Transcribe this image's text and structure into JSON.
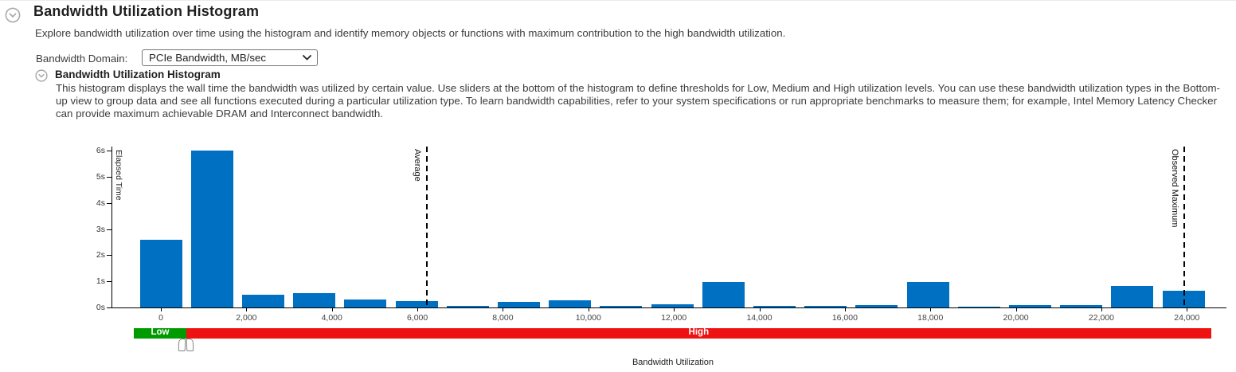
{
  "page": {
    "title": "Bandwidth Utilization Histogram",
    "subtitle": "Explore bandwidth utilization over time using the histogram and identify memory objects or functions with maximum contribution to the high bandwidth utilization."
  },
  "controls": {
    "bandwidth_domain_label": "Bandwidth Domain:",
    "bandwidth_domain_value": "PCIe Bandwidth, MB/sec"
  },
  "section": {
    "heading": "Bandwidth Utilization Histogram",
    "description": "This histogram displays the wall time the bandwidth was utilized by certain value. Use sliders at the bottom of the histogram to define thresholds for Low, Medium and High utilization levels. You can use these bandwidth utilization types in the Bottom-up view to group data and see all functions executed during a particular utilization type. To learn bandwidth capabilities, refer to your system specifications or run appropriate benchmarks to measure them; for example, Intel Memory Latency Checker can provide maximum achievable DRAM and Interconnect bandwidth."
  },
  "chart_data": {
    "type": "bar",
    "title": "Bandwidth Utilization Histogram",
    "xlabel": "Bandwidth Utilization",
    "ylabel": "Elapsed Time",
    "ylim": [
      0,
      6
    ],
    "y_tick_labels": [
      "0s",
      "1s",
      "2s",
      "3s",
      "4s",
      "5s",
      "6s"
    ],
    "x_tick_values": [
      0,
      2000,
      4000,
      6000,
      8000,
      10000,
      12000,
      14000,
      16000,
      18000,
      20000,
      22000,
      24000
    ],
    "x_tick_labels": [
      "0",
      "2,000",
      "4,000",
      "6,000",
      "8,000",
      "10,000",
      "12,000",
      "14,000",
      "16,000",
      "18,000",
      "20,000",
      "22,000",
      "24,000"
    ],
    "x": [
      0,
      1196,
      2392,
      3588,
      4784,
      5980,
      7176,
      8372,
      9568,
      10764,
      11960,
      13156,
      14352,
      15548,
      16744,
      17940,
      19136,
      20332,
      21528,
      22724,
      23920
    ],
    "values": [
      2.6,
      6.0,
      0.5,
      0.55,
      0.3,
      0.25,
      0.07,
      0.2,
      0.28,
      0.05,
      0.12,
      0.97,
      0.06,
      0.05,
      0.08,
      0.97,
      0.04,
      0.1,
      0.1,
      0.82,
      0.63
    ],
    "bar_color": "#0070C2",
    "grid": false,
    "annotations": [
      {
        "label": "Average",
        "value": 6200
      },
      {
        "label": "Observed Maximum",
        "value": 23920
      }
    ]
  },
  "slider": {
    "low_label": "Low",
    "high_label": "High",
    "low_color": "#009b00",
    "high_color": "#ee1212",
    "track_min": -630,
    "track_max": 24570,
    "thresholds": [
      498,
      685
    ]
  }
}
